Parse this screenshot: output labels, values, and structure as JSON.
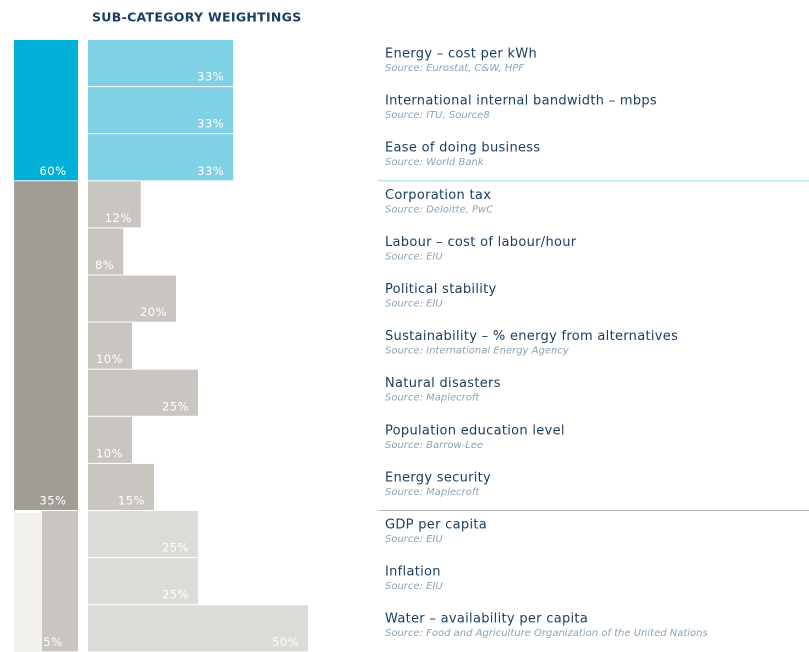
{
  "chart_data": {
    "type": "bar",
    "title": "SUB-CATEGORY WEIGHTINGS",
    "groups": [
      {
        "value": 60,
        "value_label": "60%",
        "color": "#00b0d8",
        "item_color": "#80d0e6",
        "items": [
          {
            "name": "Energy – cost per kWh",
            "source": "Source: Eurostat, C&W, HPF",
            "value": 33,
            "value_label": "33%"
          },
          {
            "name": "International internal bandwidth – mbps",
            "source": "Source: ITU, Source8",
            "value": 33,
            "value_label": "33%"
          },
          {
            "name": "Ease of doing business",
            "source": "Source: World Bank",
            "value": 33,
            "value_label": "33%"
          }
        ]
      },
      {
        "value": 35,
        "value_label": "35%",
        "color": "#a19c94",
        "item_color": "#c9c6c1",
        "items": [
          {
            "name": "Corporation tax",
            "source": "Source: Deloitte, PwC",
            "value": 12,
            "value_label": "12%"
          },
          {
            "name": "Labour – cost of labour/hour",
            "source": "Source: EIU",
            "value": 8,
            "value_label": "8%"
          },
          {
            "name": "Political stability",
            "source": "Source: EIU",
            "value": 20,
            "value_label": "20%"
          },
          {
            "name": "Sustainability – % energy from alternatives",
            "source": "Source: International Energy Agency",
            "value": 10,
            "value_label": "10%"
          },
          {
            "name": "Natural disasters",
            "source": "Source: Maplecroft",
            "value": 25,
            "value_label": "25%"
          },
          {
            "name": "Population education level",
            "source": "Source: Barrow-Lee",
            "value": 10,
            "value_label": "10%"
          },
          {
            "name": "Energy security",
            "source": "Source: Maplecroft",
            "value": 15,
            "value_label": "15%"
          }
        ]
      },
      {
        "value": 5,
        "value_label": "5%",
        "color": "#c9c6c1",
        "item_color": "#dddbd8",
        "items": [
          {
            "name": "GDP per capita",
            "source": "Source: EIU",
            "value": 25,
            "value_label": "25%"
          },
          {
            "name": "Inflation",
            "source": "Source: EIU",
            "value": 25,
            "value_label": "25%"
          },
          {
            "name": "Water – availability per capita",
            "source": "Source: Food and Agriculture Organization of the United Nations",
            "value": 50,
            "value_label": "50%"
          }
        ]
      }
    ]
  }
}
